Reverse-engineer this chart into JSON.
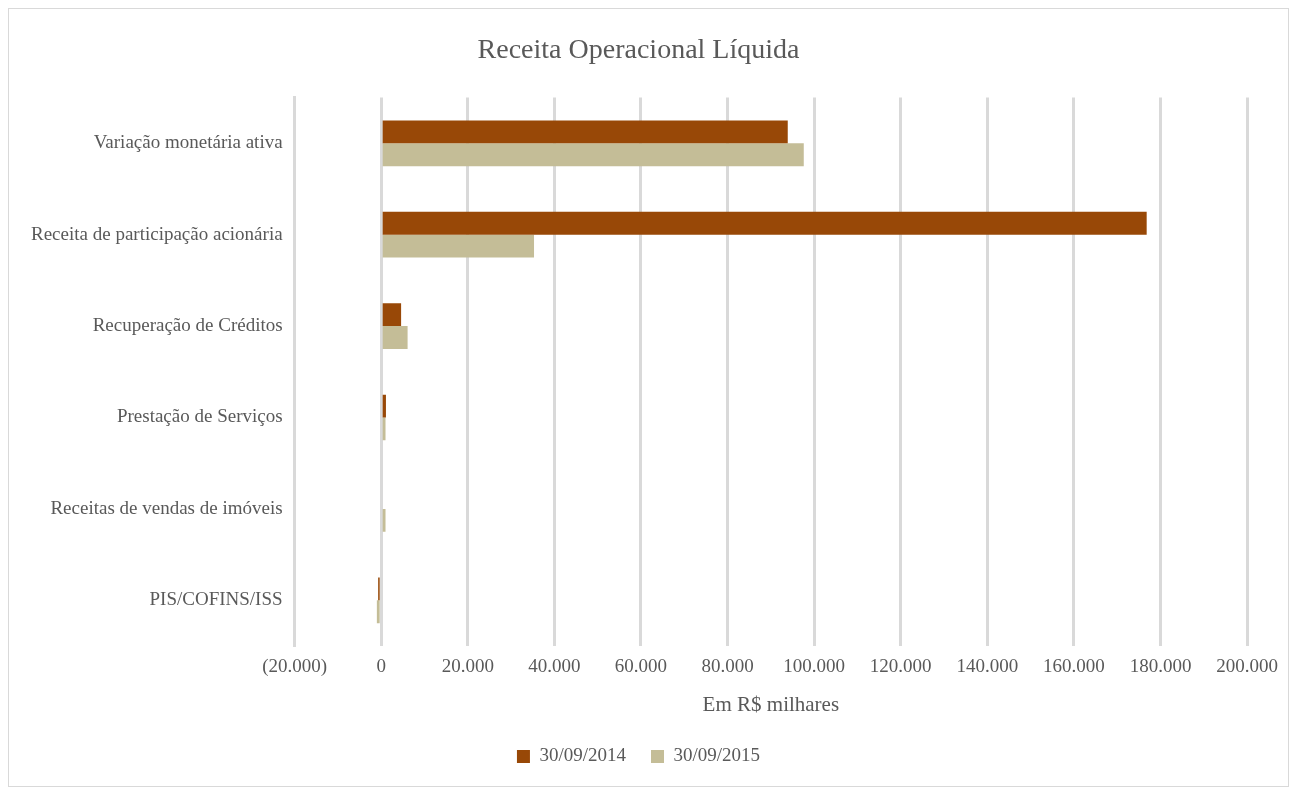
{
  "chart_data": {
    "type": "bar",
    "orientation": "horizontal",
    "title": "Receita Operacional Líquida",
    "xlabel": "Em R$ milhares",
    "categories": [
      "Variação monetária ativa",
      "Receita de participação acionária",
      "Recuperação de Créditos",
      "Prestação de Serviços",
      "Receitas de vendas de imóveis",
      "PIS/COFINS/ISS"
    ],
    "series": [
      {
        "name": "30/09/2014",
        "color": "#984807",
        "values": [
          93900,
          176800,
          4600,
          1100,
          0,
          -700
        ]
      },
      {
        "name": "30/09/2015",
        "color": "#c4bd97",
        "values": [
          97600,
          35300,
          6100,
          1000,
          1000,
          -1000
        ]
      }
    ],
    "xlim": [
      -20000,
      200000
    ],
    "xticks": [
      {
        "value": -20000,
        "label": "(20.000)"
      },
      {
        "value": 0,
        "label": "0"
      },
      {
        "value": 20000,
        "label": "20.000"
      },
      {
        "value": 40000,
        "label": "40.000"
      },
      {
        "value": 60000,
        "label": "60.000"
      },
      {
        "value": 80000,
        "label": "80.000"
      },
      {
        "value": 100000,
        "label": "100.000"
      },
      {
        "value": 120000,
        "label": "120.000"
      },
      {
        "value": 140000,
        "label": "140.000"
      },
      {
        "value": 160000,
        "label": "160.000"
      },
      {
        "value": 180000,
        "label": "180.000"
      },
      {
        "value": 200000,
        "label": "200.000"
      }
    ],
    "grid": "x",
    "legend": "bottom"
  }
}
